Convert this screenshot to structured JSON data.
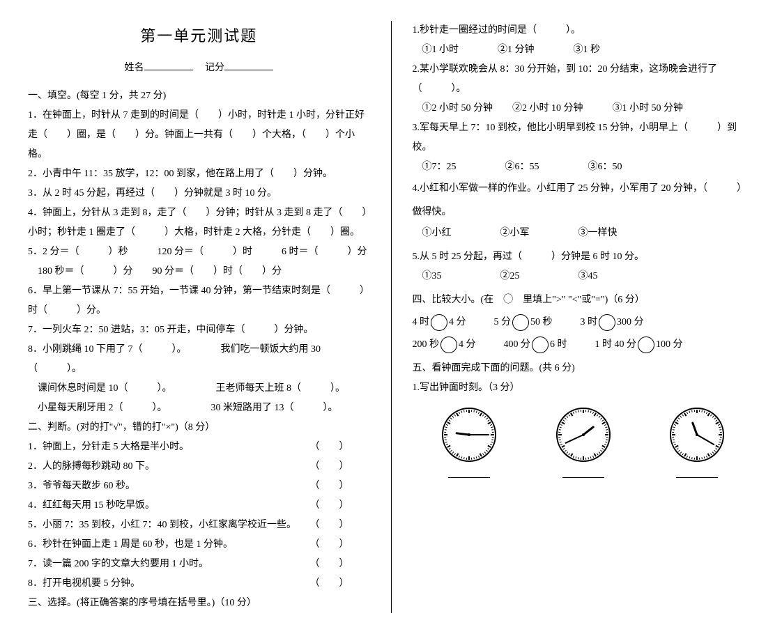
{
  "title": "第一单元测试题",
  "name_label": "姓名",
  "score_label": "记分",
  "left": {
    "sec1_header": "一、填空。(每空 1 分，共 27 分)",
    "q1": "1．在钟面上，时针从 7 走到的时间是（　　）小时，时针走 1 小时，分针正好走（　　）圈，是（　　）分。钟面上一共有（　　）个大格，（　　）个小格。",
    "q2": "2．小青中午 11：35 放学，12：00 到家，他在路上用了（　　）分钟。",
    "q3": "3．从 2 时 45 分起，再经过（　　）分钟就是 3 时 10 分。",
    "q4": "4．钟面上，分针从 3 走到 8，走了（　　）分钟；时针从 3 走到 8 走了（　　）小时；秒针走 1 圈走了（　　　）大格，时针走 2 大格，分针走（　　）圈。",
    "q5": "5．2 分＝（　　　）秒　　　120 分＝（　　　）时　　　6 时＝（　　　）分",
    "q5b": "　180 秒＝（　　　）分　　90 分＝（　　）时（　　）分",
    "q6": "6．早上第一节课从 7：55 开始，一节课 40 分钟，第一节结束时刻是（　　　）时（　　　）分。",
    "q7": "7．一列火车 2：50 进站，3：05 开走，中间停车（　　　）分钟。",
    "q8a": "8．小刚跳绳 10 下用了 7（　　　）。　　　　我们吃一顿饭大约用 30（　　　）。",
    "q8b": "　课间休息时间是 10（　　　）。　　　　　王老师每天上班 8（　　　）。",
    "q8c": "　小星每天刷牙用 2（　　　）。　　　　　30 米短路用了 13（　　　）。",
    "sec2_header": "二、判断。(对的打\"√\"，错的打\"×\")（8 分）",
    "j1": "1．钟面上，分针走 5 大格是半小时。",
    "j2": "2．人的脉搏每秒跳动 80 下。",
    "j3": "3．爷爷每天散步 60 秒。",
    "j4": "4．红红每天用 15 秒吃早饭。",
    "j5": "5．小丽 7：35 到校，小红 7：40 到校，小红家离学校近一些。",
    "j6": "6．秒针在钟面上走 1 周是 60 秒，也是 1 分钟。",
    "j7": "7．读一篇 200 字的文章大约要用 1 小时。",
    "j8": "8．打开电视机要 5 分钟。",
    "paren": "（　　）",
    "sec3_header": "三、选择。(将正确答案的序号填在括号里。)（10 分）"
  },
  "right": {
    "c1": "1.秒针走一圈经过的时间是（　　　）。",
    "c1_opts": "　①1 小时　　　　②1 分钟　　　　③1 秒",
    "c2": "2.某小学联欢晚会从 8：30 分开始，到 10：20 分结束，这场晚会进行了（　　　）。",
    "c2_opts": "　①2 小时 50 分钟　　②2 小时 10 分钟　　　③1 小时 50 分钟",
    "c3": "3.军每天早上 7：10 到校，他比小明早到校 15 分钟，小明早上（　　　）到校。",
    "c3_opts": "　①7：25　　　　　②6：55　　　　　③6：50",
    "c4": "4.小红和小军做一样的作业。小红用了 25 分钟，小军用了 20 分钟，（　　　）做得快。",
    "c4_opts": "　①小红　　　　　②小军　　　　　③一样快",
    "c5": "5.从 5 时 25 分起，再过（　　　）分钟是 6 时 10 分。",
    "c5_opts": "　①35　　　　　　②25　　　　　　③45",
    "sec4_header": "四、比较大小。(在　◯　里填上\">\" \"<\"或\"=\")（6 分）",
    "cmp": [
      [
        "4 时",
        "4 分",
        "5 分",
        "50 秒",
        "3 时",
        "300 分"
      ],
      [
        "200 秒",
        "4 分",
        "400 分",
        "6 时",
        "1 时 40 分",
        "100 分"
      ]
    ],
    "sec5_header": "五、看钟面完成下面的问题。(共 6 分)",
    "sec5_q1": "1.写出钟面时刻。（3 分）",
    "clocks": [
      {
        "hour_angle": 277,
        "minute_angle": 90
      },
      {
        "hour_angle": 52,
        "minute_angle": 245
      },
      {
        "hour_angle": 340,
        "minute_angle": 120
      }
    ],
    "clock_stroke": "#000000",
    "clock_bg": "#ffffff"
  }
}
